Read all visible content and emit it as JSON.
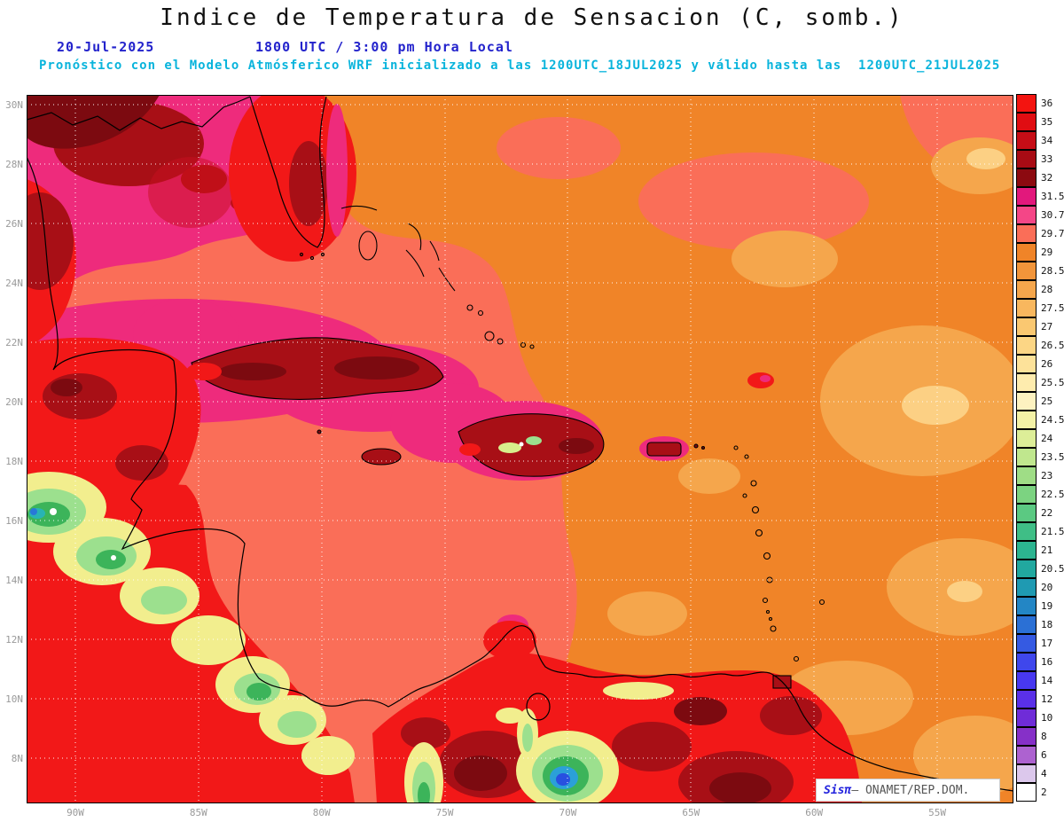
{
  "header": {
    "title": "Indice de Temperatura de Sensacion (C, somb.)",
    "date": "20-Jul-2025",
    "time": "1800 UTC / 3:00 pm Hora Local",
    "model_line": "Pronóstico con el Modelo Atmósferico WRF inicializado a las 1200UTC_18JUL2025 y válido hasta las  1200UTC_21JUL2025",
    "title_color": "#111111",
    "date_color": "#2323cc",
    "model_color": "#09b4dc"
  },
  "map": {
    "lat_ticks": [
      "30N",
      "28N",
      "26N",
      "24N",
      "22N",
      "20N",
      "18N",
      "16N",
      "14N",
      "12N",
      "10N",
      "8N"
    ],
    "lon_ticks": [
      "90W",
      "85W",
      "80W",
      "75W",
      "70W",
      "65W",
      "60W",
      "55W"
    ],
    "tick_color": "#9a9a9a",
    "base_ocean_color": "#fa6e58",
    "east_ocean_color": "#f08428"
  },
  "legend": {
    "units": "C",
    "entries": [
      {
        "label": "36",
        "color": "#f31410"
      },
      {
        "label": "35",
        "color": "#e00d12"
      },
      {
        "label": "34",
        "color": "#c60d16"
      },
      {
        "label": "33",
        "color": "#a80b14"
      },
      {
        "label": "32",
        "color": "#8c0a10"
      },
      {
        "label": "31.5",
        "color": "#e2187c"
      },
      {
        "label": "30.7",
        "color": "#f44687"
      },
      {
        "label": "29.7",
        "color": "#fa6e58"
      },
      {
        "label": "29",
        "color": "#f08428"
      },
      {
        "label": "28.5",
        "color": "#f2953a"
      },
      {
        "label": "28",
        "color": "#f5a64c"
      },
      {
        "label": "27.5",
        "color": "#f8b75e"
      },
      {
        "label": "27",
        "color": "#fac871"
      },
      {
        "label": "26.5",
        "color": "#fcd685"
      },
      {
        "label": "26",
        "color": "#fde29a"
      },
      {
        "label": "25.5",
        "color": "#feecae"
      },
      {
        "label": "25",
        "color": "#fdf2c0"
      },
      {
        "label": "24.5",
        "color": "#f4f2a6"
      },
      {
        "label": "24",
        "color": "#ddee98"
      },
      {
        "label": "23.5",
        "color": "#c0e78e"
      },
      {
        "label": "23",
        "color": "#9fdd86"
      },
      {
        "label": "22.5",
        "color": "#7cd381"
      },
      {
        "label": "22",
        "color": "#5bc982"
      },
      {
        "label": "21.5",
        "color": "#3fbe86"
      },
      {
        "label": "21",
        "color": "#2cb490"
      },
      {
        "label": "20.5",
        "color": "#21a89f"
      },
      {
        "label": "20",
        "color": "#1f9ab2"
      },
      {
        "label": "19",
        "color": "#2386c5"
      },
      {
        "label": "18",
        "color": "#2b70d5"
      },
      {
        "label": "17",
        "color": "#355ae2"
      },
      {
        "label": "16",
        "color": "#3f47ec"
      },
      {
        "label": "14",
        "color": "#4838f0"
      },
      {
        "label": "12",
        "color": "#5a30e8"
      },
      {
        "label": "10",
        "color": "#6f2cd8"
      },
      {
        "label": "8",
        "color": "#8630c8"
      },
      {
        "label": "6",
        "color": "#ad62d0"
      },
      {
        "label": "4",
        "color": "#dcc8ec"
      },
      {
        "label": "2",
        "color": "#ffffff"
      }
    ]
  },
  "watermark": {
    "brand": "Sisπ",
    "text": "– ONAMET/REP.DOM."
  }
}
